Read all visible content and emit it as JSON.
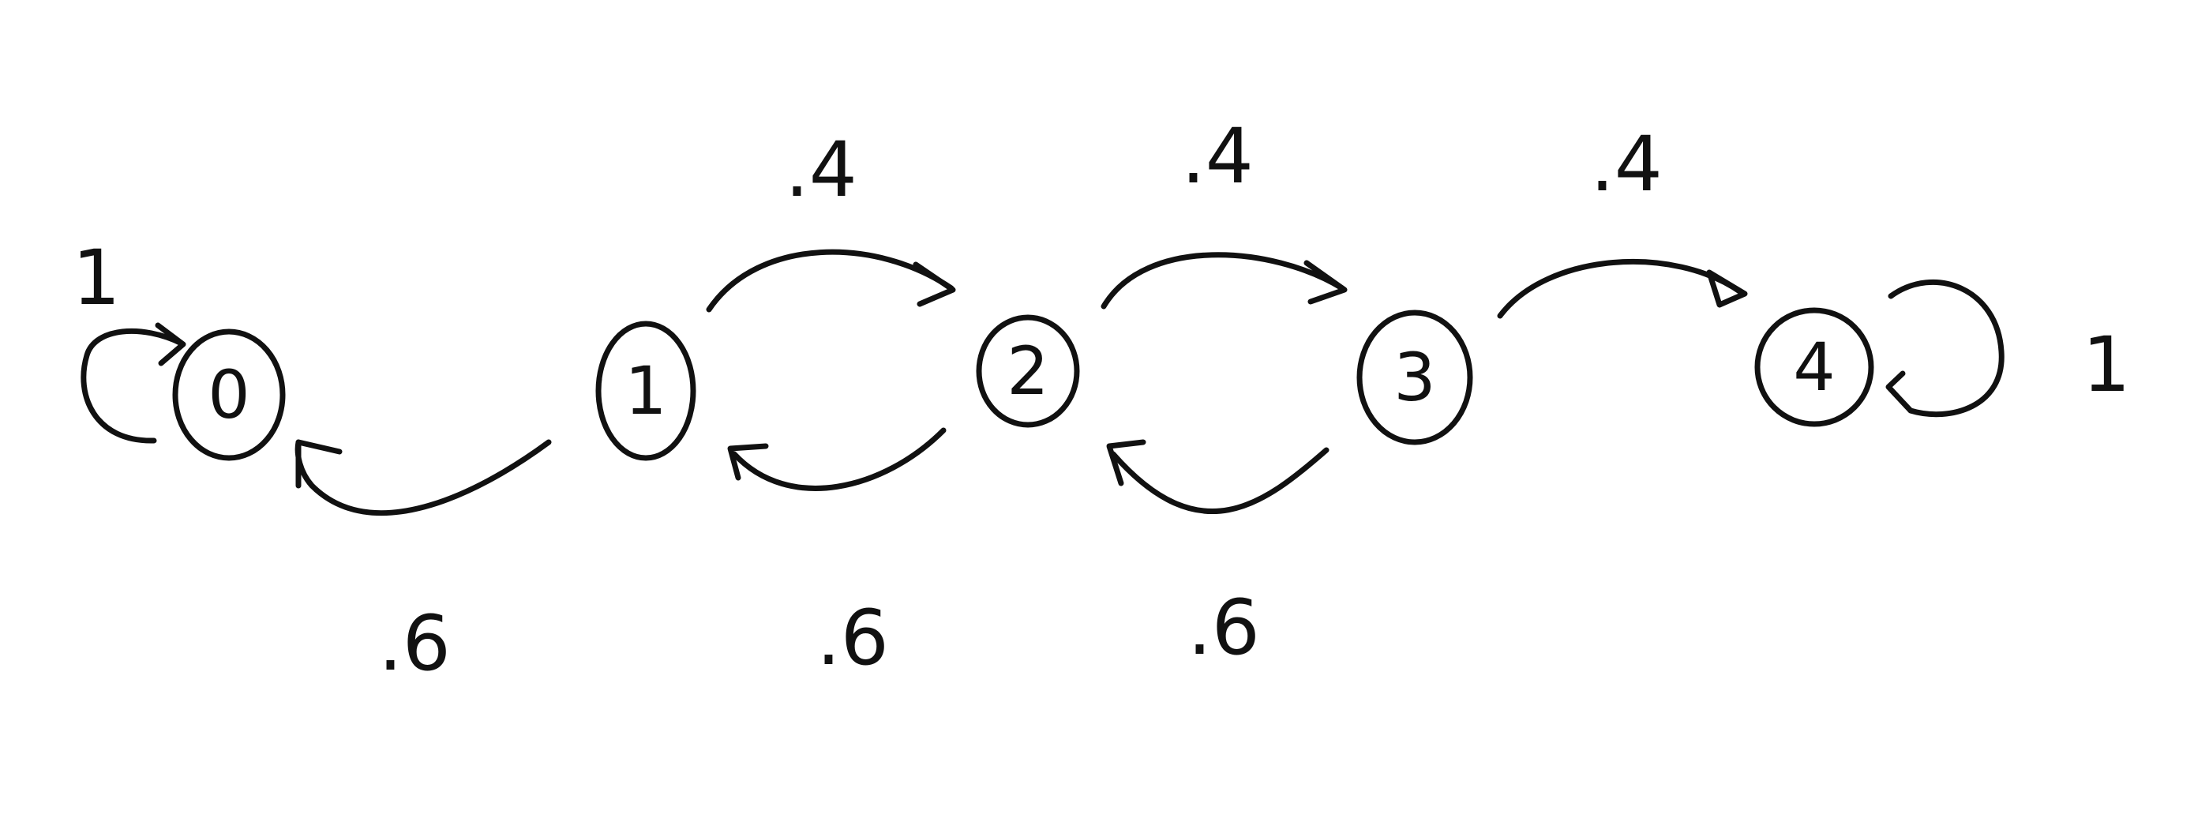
{
  "diagram": {
    "states": [
      {
        "id": "s0",
        "label": "0"
      },
      {
        "id": "s1",
        "label": "1"
      },
      {
        "id": "s2",
        "label": "2"
      },
      {
        "id": "s3",
        "label": "3"
      },
      {
        "id": "s4",
        "label": "4"
      }
    ],
    "transitions": [
      {
        "id": "t0-0",
        "from": "0",
        "to": "0",
        "label": "1"
      },
      {
        "id": "t1-2",
        "from": "1",
        "to": "2",
        "label": ".4"
      },
      {
        "id": "t2-3",
        "from": "2",
        "to": "3",
        "label": ".4"
      },
      {
        "id": "t3-4",
        "from": "3",
        "to": "4",
        "label": ".4"
      },
      {
        "id": "t4-4",
        "from": "4",
        "to": "4",
        "label": "1"
      },
      {
        "id": "t1-0",
        "from": "1",
        "to": "0",
        "label": ".6"
      },
      {
        "id": "t2-1",
        "from": "2",
        "to": "1",
        "label": ".6"
      },
      {
        "id": "t3-2",
        "from": "3",
        "to": "2",
        "label": ".6"
      }
    ],
    "colors": {
      "ink": "#111111",
      "background": "#ffffff"
    }
  }
}
